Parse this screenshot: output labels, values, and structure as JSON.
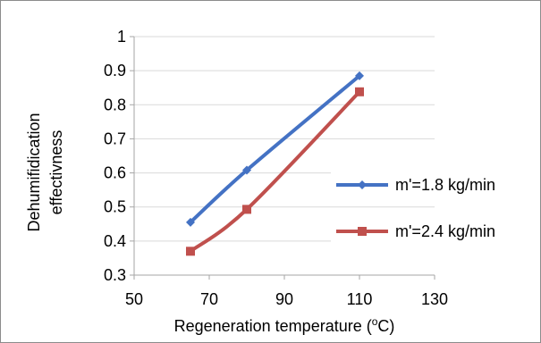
{
  "chart_data": {
    "type": "line",
    "title": "",
    "xlabel": "Regeneration temperature (",
    "xlabel_sup": "o",
    "xlabel_suffix": "C)",
    "ylabel_line1": "Dehumifidication",
    "ylabel_line2": "effectivness",
    "xlim": [
      50,
      130
    ],
    "ylim": [
      0.3,
      1.0
    ],
    "x_ticks": [
      50,
      70,
      90,
      110,
      130
    ],
    "y_ticks": [
      "0.3",
      "0.4",
      "0.5",
      "0.6",
      "0.7",
      "0.8",
      "0.9",
      "1"
    ],
    "y_tick_values": [
      0.3,
      0.4,
      0.5,
      0.6,
      0.7,
      0.8,
      0.9,
      1.0
    ],
    "grid": "horizontal",
    "legend_position": "right",
    "series": [
      {
        "name": "m'=1.8 kg/min",
        "color": "#4472c4",
        "marker": "diamond",
        "x": [
          65,
          80,
          110
        ],
        "y": [
          0.455,
          0.608,
          0.885
        ]
      },
      {
        "name": "m'=2.4 kg/min",
        "color": "#c0504d",
        "marker": "square",
        "x": [
          65,
          80,
          110
        ],
        "y": [
          0.37,
          0.493,
          0.838
        ]
      }
    ]
  }
}
